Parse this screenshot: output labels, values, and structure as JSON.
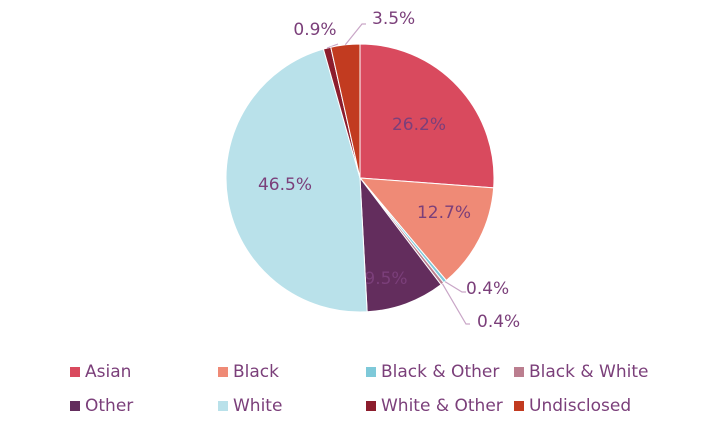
{
  "chart_data": {
    "type": "pie",
    "title": "",
    "slices": [
      {
        "name": "Asian",
        "value": 26.2,
        "label": "26.2%",
        "color": "#d94a5e"
      },
      {
        "name": "Black",
        "value": 12.7,
        "label": "12.7%",
        "color": "#ef8a76"
      },
      {
        "name": "Black & Other",
        "value": 0.4,
        "label": "0.4%",
        "color": "#7ec9d9"
      },
      {
        "name": "Black & White",
        "value": 0.4,
        "label": "0.4%",
        "color": "#bb7e8f"
      },
      {
        "name": "Other",
        "value": 9.5,
        "label": "9.5%",
        "color": "#632d5d"
      },
      {
        "name": "White",
        "value": 46.5,
        "label": "46.5%",
        "color": "#b9e1ea"
      },
      {
        "name": "White & Other",
        "value": 0.9,
        "label": "0.9%",
        "color": "#8c1d2d"
      },
      {
        "name": "Undisclosed",
        "value": 3.5,
        "label": "3.5%",
        "color": "#c23b20"
      }
    ],
    "legend_position": "bottom",
    "label_color": "#7b3f7a",
    "leader_line_color": "#c9a6c7"
  }
}
